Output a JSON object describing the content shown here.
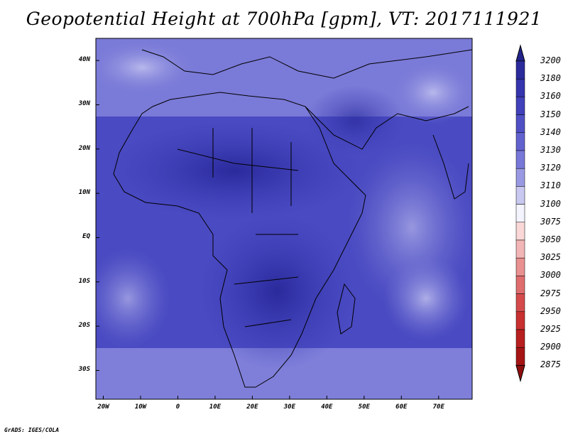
{
  "title": "Geopotential Height at 700hPa [gpm], VT: 2017111921",
  "credit": "GrADS: IGES/COLA",
  "map": {
    "lat_labels": [
      "40N",
      "30N",
      "20N",
      "10N",
      "EQ",
      "10S",
      "20S",
      "30S"
    ],
    "lon_labels": [
      "20W",
      "10W",
      "0",
      "10E",
      "20E",
      "30E",
      "40E",
      "50E",
      "60E",
      "70E"
    ],
    "lon_range": [
      -22,
      79
    ],
    "lat_range": [
      -36.5,
      45
    ]
  },
  "colorbar": {
    "labels": [
      "3200",
      "3180",
      "3160",
      "3150",
      "3140",
      "3130",
      "3120",
      "3110",
      "3100",
      "3075",
      "3050",
      "3025",
      "3000",
      "2975",
      "2950",
      "2925",
      "2900",
      "2875"
    ],
    "colors": [
      "#23238a",
      "#2b2b9c",
      "#3535ae",
      "#4141bb",
      "#5050c5",
      "#6262cf",
      "#7878d9",
      "#9999e3",
      "#c8c8f0",
      "#f4f4ff",
      "#fad8d8",
      "#f2b6b6",
      "#e99090",
      "#df6d6d",
      "#d54b4b",
      "#c93030",
      "#b81f1f",
      "#a61414",
      "#8f0e0e"
    ]
  },
  "fields": {
    "fill_color": "#4646c0",
    "warm_color": "#e98080",
    "hot_color": "#c83030",
    "boundary_color": "#000000"
  }
}
